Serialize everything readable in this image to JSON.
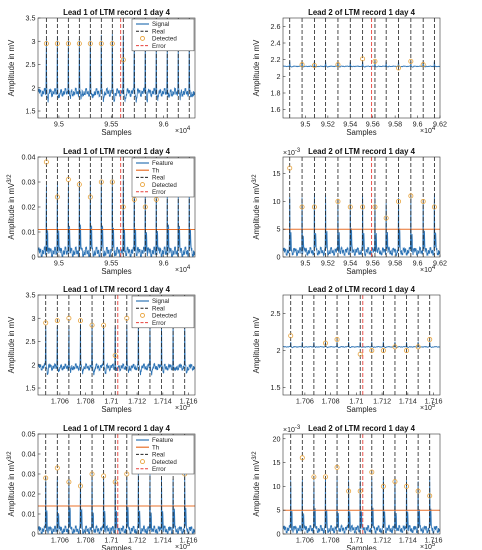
{
  "figure": {
    "colors": {
      "signal": "#2e74b5",
      "real": "#222222",
      "detected": "#e8a33b",
      "error": "#e8413b",
      "th": "#e8702a"
    }
  },
  "chart_data": [
    {
      "type": "line",
      "title": "Lead 1 of LTM record 1 day 4",
      "xlabel": "Samples",
      "ylabel": "Amplitude in mV",
      "x_exponent": "×10^4",
      "xlim": [
        9.48,
        9.63
      ],
      "ylim": [
        1.35,
        3.5
      ],
      "x_ticks": [
        9.5,
        9.55,
        9.6
      ],
      "x_tick_labels": [
        "9.5",
        "9.55",
        "9.6"
      ],
      "y_ticks": [
        1.5,
        2,
        2.5,
        3,
        3.5
      ],
      "y_tick_labels": [
        "1.5",
        "2",
        "2.5",
        "3",
        "3.5"
      ],
      "legend": [
        "Signal",
        "Real",
        "Detected",
        "Error"
      ],
      "legend_position": "top-right",
      "baseline": 1.9,
      "peak": 3.1,
      "real_peaks": [
        9.488,
        9.4985,
        9.509,
        9.5195,
        9.53,
        9.5405,
        9.551,
        9.5615,
        9.572,
        9.5825,
        9.593,
        9.6035,
        9.614,
        9.6245
      ],
      "detected": [
        {
          "x": 9.488,
          "y": 2.95
        },
        {
          "x": 9.4985,
          "y": 2.95
        },
        {
          "x": 9.509,
          "y": 2.95
        },
        {
          "x": 9.5195,
          "y": 2.95
        },
        {
          "x": 9.53,
          "y": 2.95
        },
        {
          "x": 9.5405,
          "y": 2.95
        },
        {
          "x": 9.551,
          "y": 2.95
        },
        {
          "x": 9.5615,
          "y": 2.6
        },
        {
          "x": 9.572,
          "y": 2.95
        },
        {
          "x": 9.5825,
          "y": 2.95
        },
        {
          "x": 9.593,
          "y": 2.95
        },
        {
          "x": 9.6035,
          "y": 2.95
        },
        {
          "x": 9.614,
          "y": 2.95
        },
        {
          "x": 9.6245,
          "y": 2.95
        }
      ],
      "error_at": 9.559
    },
    {
      "type": "line",
      "title": "Lead 2 of LTM record 1 day 4",
      "xlabel": "Samples",
      "ylabel": "Amplitude in mV",
      "x_exponent": "×10^4",
      "xlim": [
        9.48,
        9.62
      ],
      "ylim": [
        1.5,
        2.7
      ],
      "x_ticks": [
        9.5,
        9.52,
        9.54,
        9.56,
        9.58,
        9.6,
        9.62
      ],
      "x_tick_labels": [
        "9.5",
        "9.52",
        "9.54",
        "9.56",
        "9.58",
        "9.6",
        "9.62"
      ],
      "y_ticks": [
        1.6,
        1.8,
        2,
        2.2,
        2.4,
        2.6
      ],
      "y_tick_labels": [
        "1.6",
        "1.8",
        "2",
        "2.2",
        "2.4",
        "2.6"
      ],
      "baseline": 2.12,
      "peak": 2.18,
      "real_peaks": [
        9.486,
        9.497,
        9.508,
        9.518,
        9.529,
        9.54,
        9.551,
        9.562,
        9.572,
        9.583,
        9.594,
        9.605,
        9.615
      ],
      "detected": [
        {
          "x": 9.497,
          "y": 2.14
        },
        {
          "x": 9.508,
          "y": 2.13
        },
        {
          "x": 9.529,
          "y": 2.14
        },
        {
          "x": 9.551,
          "y": 2.21
        },
        {
          "x": 9.562,
          "y": 2.18
        },
        {
          "x": 9.583,
          "y": 2.1
        },
        {
          "x": 9.594,
          "y": 2.18
        },
        {
          "x": 9.605,
          "y": 2.14
        }
      ],
      "error_at": 9.559
    },
    {
      "type": "line",
      "title": "Lead 1 of LTM record 1 day 4",
      "xlabel": "Samples",
      "ylabel": "Amplitude in mV^3/2",
      "x_exponent": "×10^4",
      "xlim": [
        9.48,
        9.63
      ],
      "ylim": [
        0,
        0.04
      ],
      "x_ticks": [
        9.5,
        9.55,
        9.6
      ],
      "x_tick_labels": [
        "9.5",
        "9.55",
        "9.6"
      ],
      "y_ticks": [
        0,
        0.01,
        0.02,
        0.03,
        0.04
      ],
      "y_tick_labels": [
        "0",
        "0.01",
        "0.02",
        "0.03",
        "0.04"
      ],
      "legend": [
        "Feature",
        "Th",
        "Real",
        "Detected",
        "Error"
      ],
      "legend_position": "top-right",
      "baseline": 0.002,
      "peak": 0.03,
      "threshold": 0.011,
      "real_peaks": [
        9.488,
        9.4985,
        9.509,
        9.5195,
        9.53,
        9.5405,
        9.551,
        9.5615,
        9.572,
        9.5825,
        9.593,
        9.6035,
        9.614,
        9.6245
      ],
      "detected": [
        {
          "x": 9.488,
          "y": 0.038
        },
        {
          "x": 9.4985,
          "y": 0.024
        },
        {
          "x": 9.509,
          "y": 0.031
        },
        {
          "x": 9.5195,
          "y": 0.029
        },
        {
          "x": 9.53,
          "y": 0.024
        },
        {
          "x": 9.5405,
          "y": 0.03
        },
        {
          "x": 9.551,
          "y": 0.03
        },
        {
          "x": 9.5615,
          "y": 0.02
        },
        {
          "x": 9.572,
          "y": 0.023
        },
        {
          "x": 9.5825,
          "y": 0.02
        },
        {
          "x": 9.593,
          "y": 0.023
        },
        {
          "x": 9.6035,
          "y": 0.026
        },
        {
          "x": 9.614,
          "y": 0.026
        },
        {
          "x": 9.6245,
          "y": 0.025
        }
      ],
      "error_at": 9.559
    },
    {
      "type": "line",
      "title": "Lead 2 of LTM record 1 day 4",
      "xlabel": "Samples",
      "ylabel": "Amplitude in mV^3/2",
      "y_exponent": "×10^-3",
      "x_exponent": "×10^4",
      "xlim": [
        9.48,
        9.62
      ],
      "ylim": [
        0,
        0.018
      ],
      "x_ticks": [
        9.5,
        9.52,
        9.54,
        9.56,
        9.58,
        9.6,
        9.62
      ],
      "x_tick_labels": [
        "9.5",
        "9.52",
        "9.54",
        "9.56",
        "9.58",
        "9.6",
        "9.62"
      ],
      "y_ticks": [
        0,
        0.005,
        0.01,
        0.015
      ],
      "y_tick_labels": [
        "0",
        "5",
        "10",
        "15"
      ],
      "baseline": 0.001,
      "peak": 0.011,
      "threshold": 0.005,
      "real_peaks": [
        9.486,
        9.497,
        9.508,
        9.518,
        9.529,
        9.54,
        9.551,
        9.562,
        9.572,
        9.583,
        9.594,
        9.605,
        9.615
      ],
      "detected": [
        {
          "x": 9.486,
          "y": 0.016
        },
        {
          "x": 9.497,
          "y": 0.009
        },
        {
          "x": 9.508,
          "y": 0.009
        },
        {
          "x": 9.529,
          "y": 0.01
        },
        {
          "x": 9.54,
          "y": 0.009
        },
        {
          "x": 9.551,
          "y": 0.009
        },
        {
          "x": 9.562,
          "y": 0.009
        },
        {
          "x": 9.572,
          "y": 0.007
        },
        {
          "x": 9.583,
          "y": 0.01
        },
        {
          "x": 9.594,
          "y": 0.011
        },
        {
          "x": 9.605,
          "y": 0.01
        },
        {
          "x": 9.615,
          "y": 0.009
        }
      ],
      "error_at": 9.559
    },
    {
      "type": "line",
      "title": "Lead 1 of LTM record 1 day 4",
      "xlabel": "Samples",
      "ylabel": "Amplitude in mV",
      "x_exponent": "×10^5",
      "xlim": [
        1.7043,
        1.7165
      ],
      "ylim": [
        1.35,
        3.5
      ],
      "x_ticks": [
        1.706,
        1.708,
        1.71,
        1.712,
        1.714,
        1.716
      ],
      "x_tick_labels": [
        "1.706",
        "1.708",
        "1.71",
        "1.712",
        "1.714",
        "1.716"
      ],
      "y_ticks": [
        1.5,
        2,
        2.5,
        3,
        3.5
      ],
      "y_tick_labels": [
        "1.5",
        "2",
        "2.5",
        "3",
        "3.5"
      ],
      "legend": [
        "Signal",
        "Real",
        "Detected",
        "Error"
      ],
      "legend_position": "top-right",
      "baseline": 1.95,
      "peak": 2.9,
      "real_peaks": [
        1.7049,
        1.7058,
        1.7067,
        1.7076,
        1.7085,
        1.7094,
        1.7103,
        1.7112,
        1.7121,
        1.713,
        1.7139,
        1.7148,
        1.7157
      ],
      "detected": [
        {
          "x": 1.7049,
          "y": 2.9
        },
        {
          "x": 1.7058,
          "y": 2.95
        },
        {
          "x": 1.7067,
          "y": 3.0
        },
        {
          "x": 1.7076,
          "y": 2.95
        },
        {
          "x": 1.7085,
          "y": 2.85
        },
        {
          "x": 1.7094,
          "y": 2.85
        },
        {
          "x": 1.7103,
          "y": 2.2
        },
        {
          "x": 1.7112,
          "y": 3.0
        },
        {
          "x": 1.7121,
          "y": 2.95
        },
        {
          "x": 1.713,
          "y": 3.0
        },
        {
          "x": 1.7139,
          "y": 2.9
        },
        {
          "x": 1.7148,
          "y": 2.9
        },
        {
          "x": 1.7157,
          "y": 2.95
        }
      ],
      "error_at": 1.7105
    },
    {
      "type": "line",
      "title": "Lead 2 of LTM record 1 day 4",
      "xlabel": "Samples",
      "ylabel": "Amplitude in mV",
      "x_exponent": "×10^5",
      "xlim": [
        1.7043,
        1.7165
      ],
      "ylim": [
        1.4,
        2.75
      ],
      "x_ticks": [
        1.706,
        1.708,
        1.71,
        1.712,
        1.714,
        1.716
      ],
      "x_tick_labels": [
        "1.706",
        "1.708",
        "1.71",
        "1.712",
        "1.714",
        "1.716"
      ],
      "y_ticks": [
        1.5,
        2,
        2.5
      ],
      "y_tick_labels": [
        "1.5",
        "2",
        "2.5"
      ],
      "baseline": 2.05,
      "peak": 2.12,
      "real_peaks": [
        1.7049,
        1.7058,
        1.7067,
        1.7076,
        1.7085,
        1.7094,
        1.7103,
        1.7112,
        1.7121,
        1.713,
        1.7139,
        1.7148,
        1.7157
      ],
      "detected": [
        {
          "x": 1.7049,
          "y": 2.2
        },
        {
          "x": 1.7076,
          "y": 2.1
        },
        {
          "x": 1.7085,
          "y": 2.15
        },
        {
          "x": 1.7103,
          "y": 1.95
        },
        {
          "x": 1.7112,
          "y": 2.0
        },
        {
          "x": 1.7121,
          "y": 2.0
        },
        {
          "x": 1.713,
          "y": 2.05
        },
        {
          "x": 1.7139,
          "y": 2.0
        },
        {
          "x": 1.7148,
          "y": 2.05
        },
        {
          "x": 1.7157,
          "y": 2.15
        }
      ],
      "error_at": 1.7105
    },
    {
      "type": "line",
      "title": "Lead 1 of LTM record 1 day 4",
      "xlabel": "Samples",
      "ylabel": "Amplitude in mV^3/2",
      "x_exponent": "×10^5",
      "xlim": [
        1.7043,
        1.7165
      ],
      "ylim": [
        0,
        0.05
      ],
      "x_ticks": [
        1.706,
        1.708,
        1.71,
        1.712,
        1.714,
        1.716
      ],
      "x_tick_labels": [
        "1.706",
        "1.708",
        "1.71",
        "1.712",
        "1.714",
        "1.716"
      ],
      "y_ticks": [
        0,
        0.01,
        0.02,
        0.03,
        0.04,
        0.05
      ],
      "y_tick_labels": [
        "0",
        "0.01",
        "0.02",
        "0.03",
        "0.04",
        "0.05"
      ],
      "legend": [
        "Feature",
        "Th",
        "Real",
        "Detected",
        "Error"
      ],
      "legend_position": "top-right",
      "baseline": 0.002,
      "peak": 0.03,
      "threshold": 0.014,
      "real_peaks": [
        1.7049,
        1.7058,
        1.7067,
        1.7076,
        1.7085,
        1.7094,
        1.7103,
        1.7112,
        1.7121,
        1.713,
        1.7139,
        1.7148,
        1.7157
      ],
      "detected": [
        {
          "x": 1.7049,
          "y": 0.028
        },
        {
          "x": 1.7058,
          "y": 0.033
        },
        {
          "x": 1.7067,
          "y": 0.026
        },
        {
          "x": 1.7076,
          "y": 0.024
        },
        {
          "x": 1.7085,
          "y": 0.03
        },
        {
          "x": 1.7094,
          "y": 0.029
        },
        {
          "x": 1.7103,
          "y": 0.026
        },
        {
          "x": 1.7112,
          "y": 0.03
        },
        {
          "x": 1.7121,
          "y": 0.032
        },
        {
          "x": 1.713,
          "y": 0.032
        },
        {
          "x": 1.7139,
          "y": 0.035
        },
        {
          "x": 1.7148,
          "y": 0.032
        },
        {
          "x": 1.7157,
          "y": 0.03
        }
      ],
      "error_at": 1.7105
    },
    {
      "type": "line",
      "title": "Lead 2 of LTM record 1 day 4",
      "xlabel": "Samples",
      "ylabel": "Amplitude in mV^3/2",
      "y_exponent": "×10^-3",
      "x_exponent": "×10^5",
      "xlim": [
        1.7043,
        1.7165
      ],
      "ylim": [
        0,
        0.021
      ],
      "x_ticks": [
        1.706,
        1.708,
        1.71,
        1.712,
        1.714,
        1.716
      ],
      "x_tick_labels": [
        "1.706",
        "1.708",
        "1.71",
        "1.712",
        "1.714",
        "1.716"
      ],
      "y_ticks": [
        0,
        0.005,
        0.01,
        0.015,
        0.02
      ],
      "y_tick_labels": [
        "0",
        "5",
        "10",
        "15",
        "20"
      ],
      "baseline": 0.001,
      "peak": 0.012,
      "threshold": 0.005,
      "real_peaks": [
        1.7049,
        1.7058,
        1.7067,
        1.7076,
        1.7085,
        1.7094,
        1.7103,
        1.7112,
        1.7121,
        1.713,
        1.7139,
        1.7148,
        1.7157
      ],
      "detected": [
        {
          "x": 1.7058,
          "y": 0.016
        },
        {
          "x": 1.7067,
          "y": 0.012
        },
        {
          "x": 1.7076,
          "y": 0.012
        },
        {
          "x": 1.7085,
          "y": 0.014
        },
        {
          "x": 1.7094,
          "y": 0.009
        },
        {
          "x": 1.7103,
          "y": 0.009
        },
        {
          "x": 1.7112,
          "y": 0.013
        },
        {
          "x": 1.7121,
          "y": 0.01
        },
        {
          "x": 1.713,
          "y": 0.011
        },
        {
          "x": 1.7139,
          "y": 0.01
        },
        {
          "x": 1.7148,
          "y": 0.009
        },
        {
          "x": 1.7157,
          "y": 0.008
        }
      ],
      "error_at": 1.7105
    }
  ]
}
